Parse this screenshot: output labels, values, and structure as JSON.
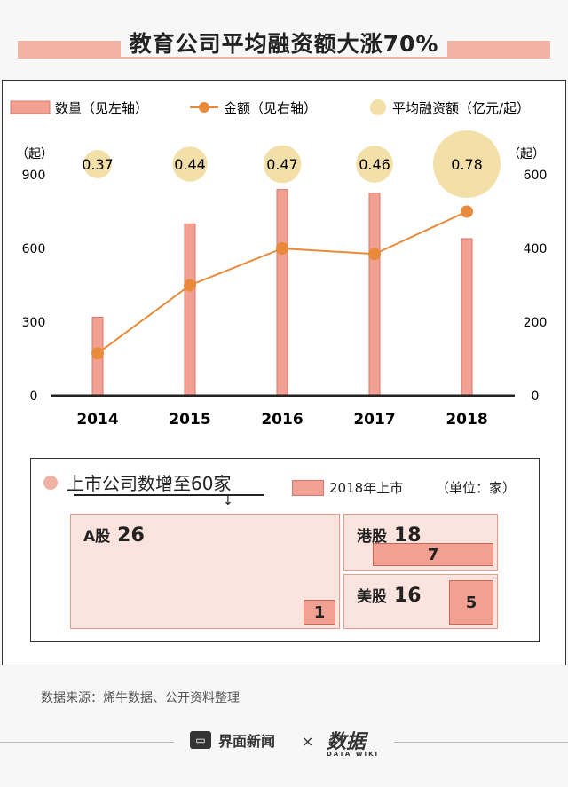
{
  "title": "教育公司平均融资额大涨70%",
  "legend": {
    "count": "数量（见左轴）",
    "amount": "金额（见右轴）",
    "avg": "平均融资额（亿元/起）"
  },
  "axis": {
    "left_unit": "（起）",
    "right_unit": "（起）"
  },
  "chart_data": {
    "type": "bar",
    "categories": [
      "2014",
      "2015",
      "2016",
      "2017",
      "2018"
    ],
    "series": [
      {
        "name": "数量（见左轴）",
        "type": "bar",
        "axis": "left",
        "values": [
          320,
          700,
          840,
          825,
          640
        ]
      },
      {
        "name": "金额（见右轴）",
        "type": "line",
        "axis": "right",
        "values": [
          115,
          300,
          400,
          385,
          500
        ]
      },
      {
        "name": "平均融资额（亿元/起）",
        "type": "bubble",
        "values": [
          0.37,
          0.44,
          0.47,
          0.46,
          0.78
        ]
      }
    ],
    "bubble_labels": [
      "0.37",
      "0.44",
      "0.47",
      "0.46",
      "0.78"
    ],
    "left_ticks": [
      "900",
      "600",
      "300",
      "0"
    ],
    "right_ticks": [
      "600",
      "400",
      "200",
      "0"
    ],
    "ylim_left": [
      0,
      900
    ],
    "ylim_right": [
      0,
      600
    ],
    "colors": {
      "bar": "#f2a091",
      "bar_border": "#d9776a",
      "line": "#e88a3a",
      "bubble": "#f3dfa8"
    }
  },
  "listing": {
    "headline": "上市公司数增至60家",
    "legend_label": "2018年上市",
    "unit": "（单位：家）",
    "a_share": {
      "name": "A股",
      "total": "26",
      "new_2018": "1"
    },
    "hk": {
      "name": "港股",
      "total": "18",
      "new_2018": "7"
    },
    "us": {
      "name": "美股",
      "total": "16",
      "new_2018": "5"
    }
  },
  "source": "数据来源：烯牛数据、公开资料整理",
  "footer": {
    "brand": "界面新闻",
    "times": "×",
    "brand2": "数据",
    "brand2_sub": "DATA WIKI"
  }
}
